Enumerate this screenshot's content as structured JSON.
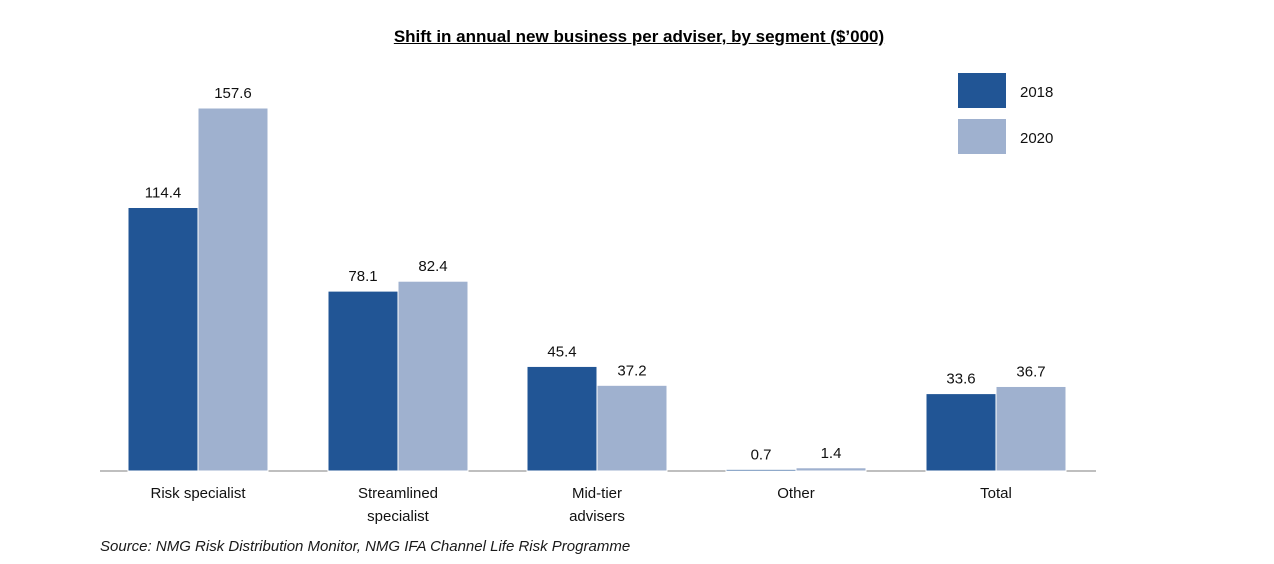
{
  "chart_data": {
    "type": "bar",
    "title": "Shift in annual  new business per adviser,  by segment ($’000)",
    "categories": [
      [
        "Risk specialist"
      ],
      [
        "Streamlined",
        "specialist"
      ],
      [
        "Mid-tier",
        "advisers"
      ],
      [
        "Other"
      ],
      [
        "Total"
      ]
    ],
    "series": [
      {
        "name": "2018",
        "color": "#215595",
        "values": [
          114.4,
          78.1,
          45.4,
          0.7,
          33.6
        ]
      },
      {
        "name": "2020",
        "color": "#9fb1cf",
        "values": [
          157.6,
          82.4,
          37.2,
          1.4,
          36.7
        ]
      }
    ],
    "value_labels": [
      [
        "114.4",
        "78.1",
        "45.4",
        "0.7",
        "33.6"
      ],
      [
        "157.6",
        "82.4",
        "37.2",
        "1.4",
        "36.7"
      ]
    ],
    "ylim": [
      0,
      160
    ],
    "grid": false,
    "legend_position": "top-right",
    "source": "Source: NMG Risk Distribution Monitor, NMG IFA Channel Life Risk Programme"
  }
}
